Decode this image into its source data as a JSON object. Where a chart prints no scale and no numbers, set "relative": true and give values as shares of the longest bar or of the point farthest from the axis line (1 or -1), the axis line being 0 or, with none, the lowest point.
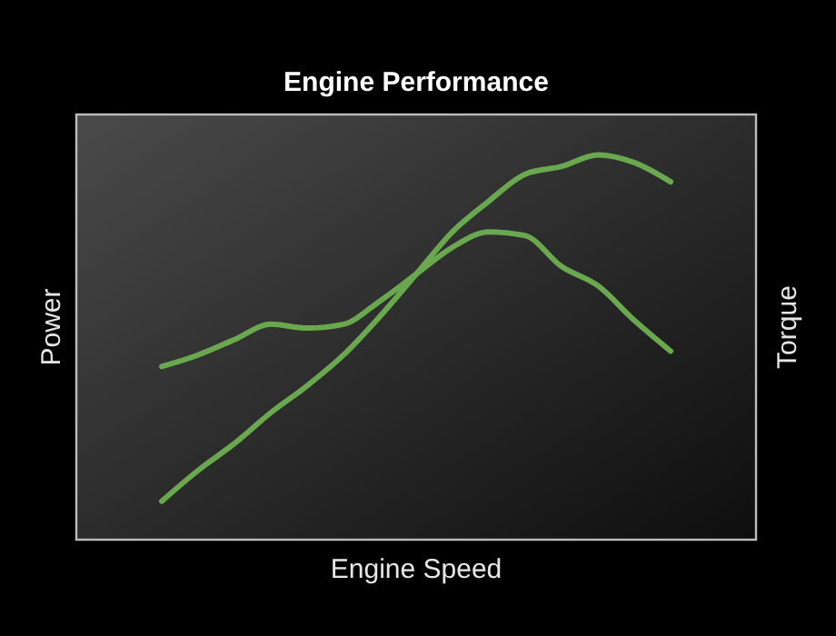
{
  "chart_data": {
    "type": "line",
    "title": "Engine Performance",
    "xlabel": "Engine Speed",
    "ylabel": "Power",
    "y2label": "Torque",
    "relative": true,
    "categories": [
      null,
      null,
      null,
      null,
      null,
      null,
      null,
      null,
      null,
      null,
      null,
      null,
      null,
      null,
      null
    ],
    "series": [
      {
        "color": "#6aa84f",
        "values": [
          0.1,
          0.18,
          0.25,
          0.33,
          0.4,
          0.48,
          0.58,
          0.69,
          0.8,
          0.88,
          0.95,
          0.97,
          1,
          0.98,
          0.93
        ]
      },
      {
        "color": "#6aa84f",
        "values": [
          0.45,
          0.48,
          0.52,
          0.56,
          0.55,
          0.56,
          0.62,
          0.69,
          0.76,
          0.8,
          0.79,
          0.71,
          0.66,
          0.57,
          0.49
        ]
      }
    ]
  }
}
